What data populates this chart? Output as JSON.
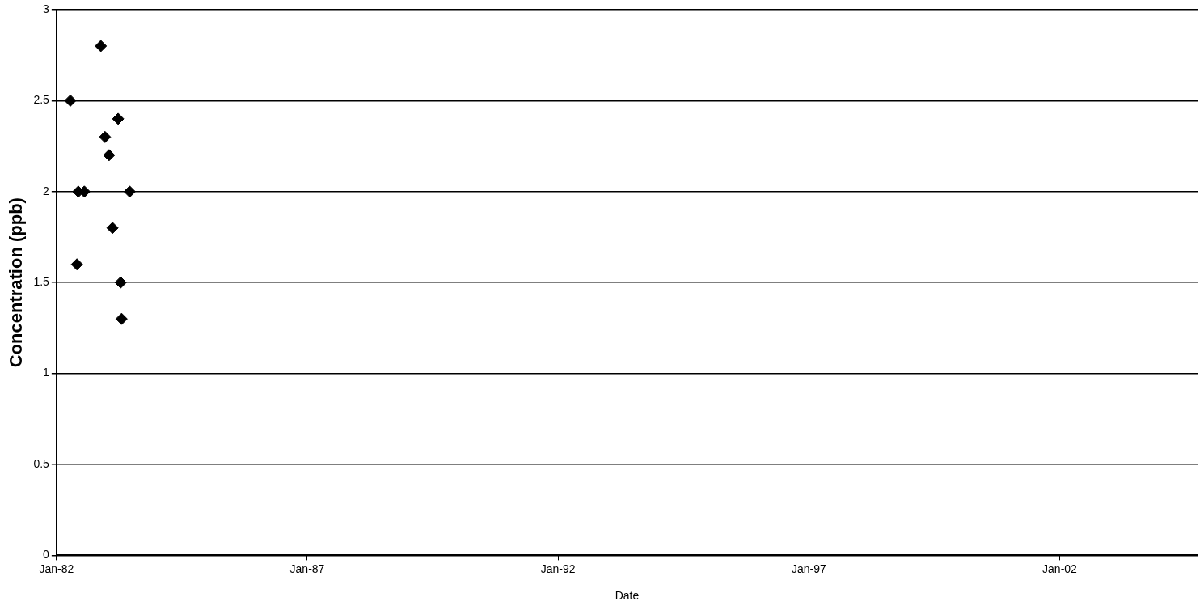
{
  "chart_data": {
    "type": "scatter",
    "xlabel": "Date",
    "ylabel": "Concentration (ppb)",
    "x": [
      "1982-04-12",
      "1982-05-30",
      "1982-06-09",
      "1982-07-23",
      "1982-11-20",
      "1982-12-20",
      "1983-01-19",
      "1983-02-13",
      "1983-03-26",
      "1983-04-13",
      "1983-04-20",
      "1983-06-18"
    ],
    "values": [
      2.5,
      1.6,
      2.0,
      2.0,
      2.8,
      2.3,
      2.2,
      1.8,
      2.4,
      1.5,
      1.3,
      2.0
    ],
    "color": "#000000",
    "marker": "diamond",
    "xlim": [
      "1982-01-01",
      "2004-10-01"
    ],
    "xticks": [
      {
        "value": "1982-01-01",
        "label": "Jan-82"
      },
      {
        "value": "1987-01-01",
        "label": "Jan-87"
      },
      {
        "value": "1992-01-01",
        "label": "Jan-92"
      },
      {
        "value": "1997-01-01",
        "label": "Jan-97"
      },
      {
        "value": "2002-01-01",
        "label": "Jan-02"
      }
    ],
    "ylim": [
      0,
      3
    ],
    "yticks": [
      0,
      0.5,
      1,
      1.5,
      2,
      2.5,
      3
    ],
    "grid": "y",
    "legend": false
  }
}
